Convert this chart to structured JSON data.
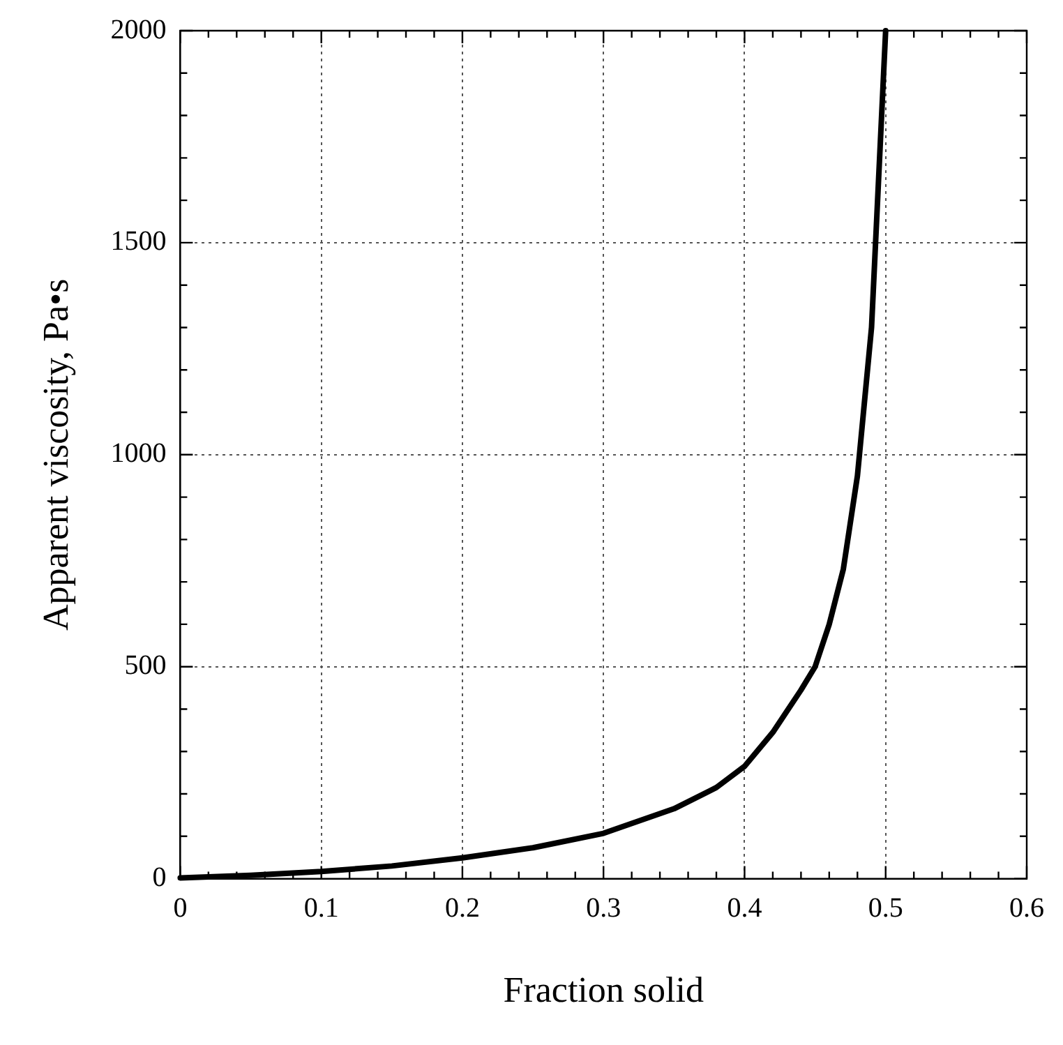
{
  "chart_data": {
    "type": "line",
    "xlabel": "Fraction solid",
    "ylabel": "Apparent viscosity, Pa•s",
    "xlim": [
      0,
      0.6
    ],
    "ylim": [
      0,
      2000
    ],
    "xticks": [
      0,
      {
        "value": 0.02,
        "label": null
      },
      {
        "value": 0.04,
        "label": null
      },
      {
        "value": 0.06,
        "label": null
      },
      {
        "value": 0.08,
        "label": null
      },
      0.1,
      {
        "value": 0.12,
        "label": null
      },
      {
        "value": 0.14,
        "label": null
      },
      {
        "value": 0.16,
        "label": null
      },
      {
        "value": 0.18,
        "label": null
      },
      0.2,
      {
        "value": 0.22,
        "label": null
      },
      {
        "value": 0.24,
        "label": null
      },
      {
        "value": 0.26,
        "label": null
      },
      {
        "value": 0.28,
        "label": null
      },
      0.3,
      {
        "value": 0.32,
        "label": null
      },
      {
        "value": 0.34,
        "label": null
      },
      {
        "value": 0.36,
        "label": null
      },
      {
        "value": 0.38,
        "label": null
      },
      0.4,
      {
        "value": 0.42,
        "label": null
      },
      {
        "value": 0.44,
        "label": null
      },
      {
        "value": 0.46,
        "label": null
      },
      {
        "value": 0.48,
        "label": null
      },
      0.5,
      {
        "value": 0.52,
        "label": null
      },
      {
        "value": 0.54,
        "label": null
      },
      {
        "value": 0.56,
        "label": null
      },
      {
        "value": 0.58,
        "label": null
      },
      0.6
    ],
    "yticks": [
      0,
      {
        "value": 100,
        "label": null
      },
      {
        "value": 200,
        "label": null
      },
      {
        "value": 300,
        "label": null
      },
      {
        "value": 400,
        "label": null
      },
      500,
      {
        "value": 600,
        "label": null
      },
      {
        "value": 700,
        "label": null
      },
      {
        "value": 800,
        "label": null
      },
      {
        "value": 900,
        "label": null
      },
      1000,
      {
        "value": 1100,
        "label": null
      },
      {
        "value": 1200,
        "label": null
      },
      {
        "value": 1300,
        "label": null
      },
      {
        "value": 1400,
        "label": null
      },
      1500,
      {
        "value": 1600,
        "label": null
      },
      {
        "value": 1700,
        "label": null
      },
      {
        "value": 1800,
        "label": null
      },
      {
        "value": 1900,
        "label": null
      },
      2000
    ],
    "grid": true,
    "legend": false,
    "marker": "none",
    "line_style": "solid",
    "series": [
      {
        "color": "#000000",
        "x": [
          0,
          0.05,
          0.1,
          0.15,
          0.2,
          0.25,
          0.3,
          0.35,
          0.38,
          0.4,
          0.42,
          0.44,
          0.45,
          0.46,
          0.47,
          0.48,
          0.49,
          0.5
        ],
        "values": [
          2,
          8,
          17,
          30,
          49,
          73,
          107,
          165,
          215,
          265,
          345,
          445,
          500,
          600,
          730,
          950,
          1300,
          2000
        ]
      }
    ]
  }
}
